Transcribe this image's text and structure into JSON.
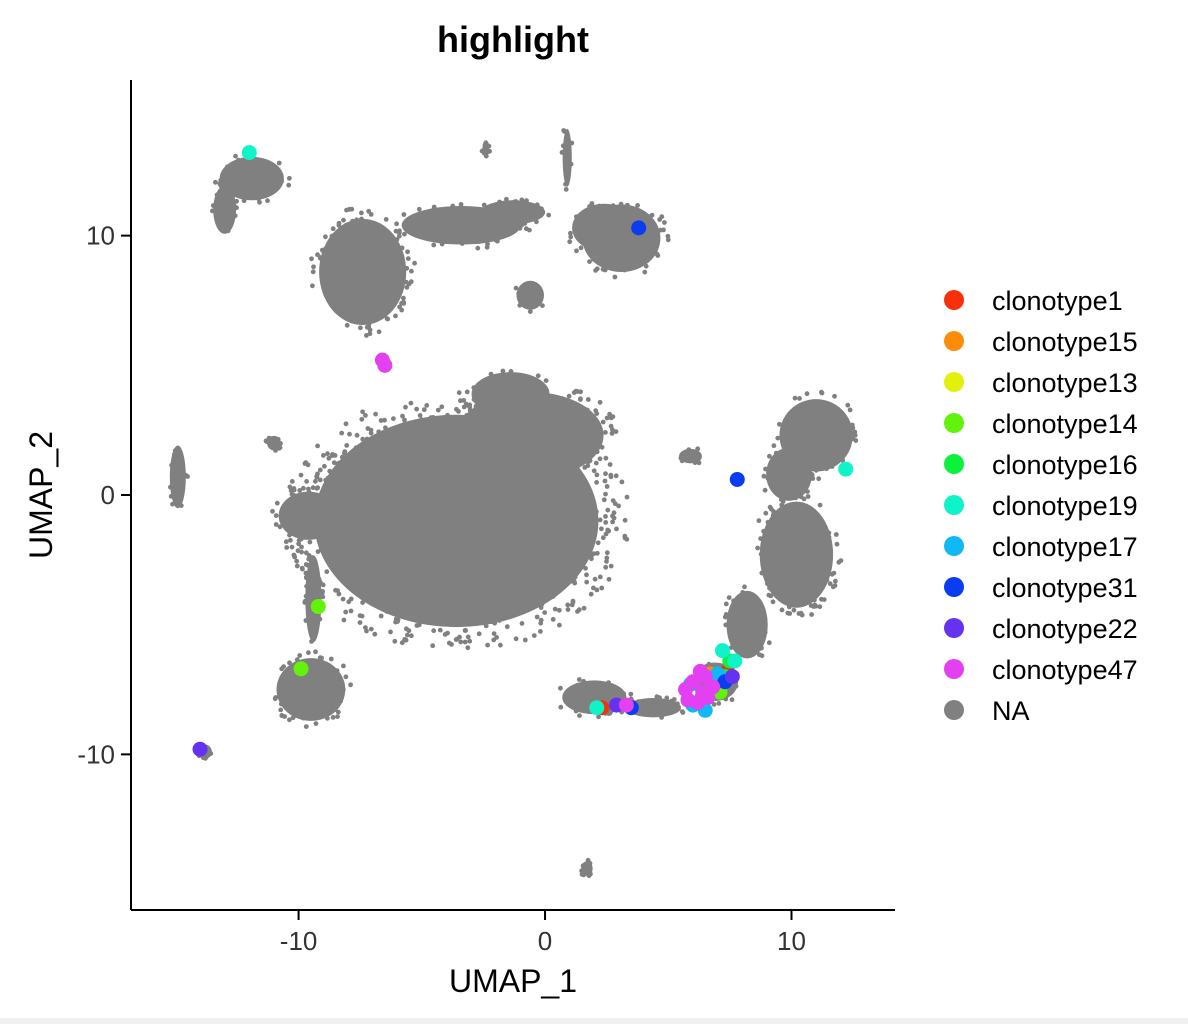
{
  "chart_data": {
    "type": "scatter",
    "title": "highlight",
    "xlabel": "UMAP_1",
    "ylabel": "UMAP_2",
    "xlim": [
      -16.8,
      14.2
    ],
    "ylim": [
      -16.0,
      16.0
    ],
    "xticks": [
      {
        "value": -10,
        "label": "-10"
      },
      {
        "value": 0,
        "label": "0"
      },
      {
        "value": 10,
        "label": "10"
      }
    ],
    "yticks": [
      {
        "value": -10,
        "label": "-10"
      },
      {
        "value": 0,
        "label": "0"
      },
      {
        "value": 10,
        "label": "10"
      }
    ],
    "grid": false,
    "legend_position": "right",
    "background_series": {
      "name": "NA",
      "color": "#808080",
      "clusters": [
        {
          "cx": -3.6,
          "cy": -1.0,
          "rx": 6.2,
          "ry": 4.4
        },
        {
          "cx": -0.6,
          "cy": 2.3,
          "rx": 3.2,
          "ry": 1.8
        },
        {
          "cx": -1.4,
          "cy": 3.9,
          "rx": 1.7,
          "ry": 0.9
        },
        {
          "cx": -7.4,
          "cy": 8.6,
          "rx": 1.9,
          "ry": 2.2
        },
        {
          "cx": -3.4,
          "cy": 10.4,
          "rx": 2.6,
          "ry": 0.8
        },
        {
          "cx": -1.3,
          "cy": 10.9,
          "rx": 1.4,
          "ry": 0.5
        },
        {
          "cx": -11.9,
          "cy": 12.2,
          "rx": 1.4,
          "ry": 0.9
        },
        {
          "cx": -13.0,
          "cy": 11.0,
          "rx": 0.5,
          "ry": 1.0
        },
        {
          "cx": 2.4,
          "cy": 10.3,
          "rx": 1.4,
          "ry": 1.0
        },
        {
          "cx": 3.1,
          "cy": 9.9,
          "rx": 1.7,
          "ry": 1.4
        },
        {
          "cx": 0.9,
          "cy": 13.0,
          "rx": 0.2,
          "ry": 1.2
        },
        {
          "cx": -0.6,
          "cy": 7.7,
          "rx": 0.6,
          "ry": 0.6
        },
        {
          "cx": 11.0,
          "cy": 2.3,
          "rx": 1.6,
          "ry": 1.5
        },
        {
          "cx": 9.9,
          "cy": 0.8,
          "rx": 1.0,
          "ry": 1.1
        },
        {
          "cx": 10.2,
          "cy": -2.3,
          "rx": 1.6,
          "ry": 2.2
        },
        {
          "cx": 8.2,
          "cy": -5.0,
          "rx": 0.9,
          "ry": 1.4
        },
        {
          "cx": 6.9,
          "cy": -7.2,
          "rx": 1.0,
          "ry": 0.8
        },
        {
          "cx": 2.0,
          "cy": -7.8,
          "rx": 1.4,
          "ry": 0.7
        },
        {
          "cx": 4.4,
          "cy": -8.2,
          "rx": 1.2,
          "ry": 0.4
        },
        {
          "cx": -9.6,
          "cy": -0.8,
          "rx": 1.3,
          "ry": 1.0
        },
        {
          "cx": -9.4,
          "cy": -4.0,
          "rx": 0.35,
          "ry": 1.8
        },
        {
          "cx": -9.5,
          "cy": -7.5,
          "rx": 1.5,
          "ry": 1.3
        },
        {
          "cx": -14.9,
          "cy": 0.7,
          "rx": 0.35,
          "ry": 1.3
        },
        {
          "cx": 5.9,
          "cy": 1.5,
          "rx": 0.5,
          "ry": 0.3
        },
        {
          "cx": -11.0,
          "cy": 2.0,
          "rx": 0.3,
          "ry": 0.3
        },
        {
          "cx": -2.4,
          "cy": 13.4,
          "rx": 0.15,
          "ry": 0.3
        },
        {
          "cx": 1.7,
          "cy": -14.4,
          "rx": 0.25,
          "ry": 0.3
        },
        {
          "cx": -13.8,
          "cy": -9.9,
          "rx": 0.3,
          "ry": 0.3
        }
      ]
    },
    "series": [
      {
        "name": "clonotype1",
        "color": "#F8300A",
        "points": [
          [
            7.4,
            -6.8
          ],
          [
            2.3,
            -8.2
          ],
          [
            6.9,
            -7.5
          ]
        ]
      },
      {
        "name": "clonotype15",
        "color": "#FD8C0B",
        "points": [
          [
            7.1,
            -7.0
          ],
          [
            6.7,
            -6.9
          ]
        ]
      },
      {
        "name": "clonotype13",
        "color": "#E2F10B",
        "points": [
          [
            6.8,
            -7.2
          ]
        ]
      },
      {
        "name": "clonotype14",
        "color": "#62F20B",
        "points": [
          [
            -9.2,
            -4.3
          ],
          [
            -9.9,
            -6.7
          ],
          [
            7.1,
            -7.6
          ]
        ]
      },
      {
        "name": "clonotype16",
        "color": "#0AF23C",
        "points": [
          [
            7.5,
            -6.4
          ],
          [
            7.3,
            -7.0
          ]
        ]
      },
      {
        "name": "clonotype19",
        "color": "#0EF4C8",
        "points": [
          [
            -12.0,
            13.2
          ],
          [
            12.2,
            1.0
          ],
          [
            7.2,
            -6.0
          ],
          [
            2.1,
            -8.2
          ],
          [
            7.7,
            -6.4
          ]
        ]
      },
      {
        "name": "clonotype17",
        "color": "#10B8F5",
        "points": [
          [
            6.0,
            -8.1
          ],
          [
            6.5,
            -8.3
          ],
          [
            5.9,
            -7.3
          ],
          [
            7.0,
            -6.9
          ]
        ]
      },
      {
        "name": "clonotype31",
        "color": "#0A3CF2",
        "points": [
          [
            3.8,
            10.3
          ],
          [
            7.8,
            0.6
          ],
          [
            7.3,
            -7.2
          ],
          [
            3.5,
            -8.2
          ]
        ]
      },
      {
        "name": "clonotype22",
        "color": "#6432F0",
        "points": [
          [
            -14.0,
            -9.8
          ],
          [
            2.9,
            -8.1
          ],
          [
            7.6,
            -7.0
          ]
        ]
      },
      {
        "name": "clonotype47",
        "color": "#E240F0",
        "points": [
          [
            -6.6,
            5.2
          ],
          [
            -6.5,
            5.0
          ],
          [
            3.3,
            -8.1
          ],
          [
            6.0,
            -7.2
          ],
          [
            6.4,
            -7.6
          ],
          [
            5.8,
            -7.9
          ],
          [
            6.5,
            -7.0
          ],
          [
            6.2,
            -8.0
          ],
          [
            6.8,
            -7.4
          ],
          [
            5.7,
            -7.5
          ],
          [
            6.3,
            -6.8
          ],
          [
            6.6,
            -7.8
          ]
        ]
      }
    ]
  }
}
